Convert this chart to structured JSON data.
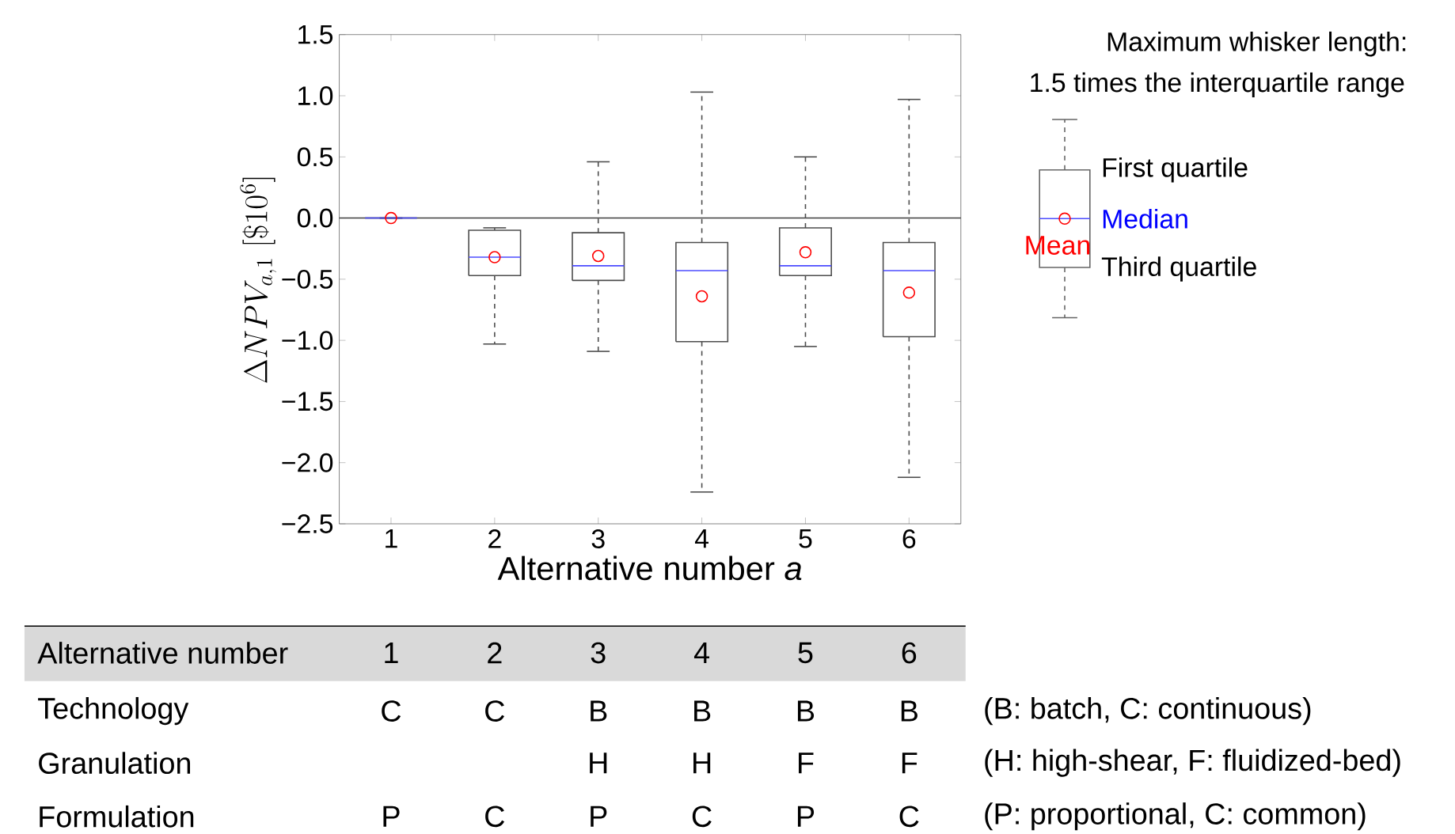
{
  "chart_data": {
    "type": "box",
    "categories": [
      "1",
      "2",
      "3",
      "4",
      "5",
      "6"
    ],
    "xlabel": "Alternative number *a*",
    "ylabel": "\\Delta NPV_{a,1}\\;[\\$10^{6}]",
    "ylim": [
      -2.5,
      1.5
    ],
    "yticks": [
      {
        "value": 1.5,
        "label": "1.5"
      },
      {
        "value": 1.0,
        "label": "1.0"
      },
      {
        "value": 0.5,
        "label": "0.5"
      },
      {
        "value": 0,
        "label": "0.0"
      },
      {
        "value": -0.5,
        "label": "−0.5"
      },
      {
        "value": -1.0,
        "label": "−1.0"
      },
      {
        "value": -1.5,
        "label": "−1.5"
      },
      {
        "value": -2.0,
        "label": "−2.0"
      },
      {
        "value": -2.5,
        "label": "−2.5"
      }
    ],
    "series": [
      {
        "color": "#4d4d4d",
        "boxes": [
          {
            "low": 0,
            "q1": 0,
            "median": 0,
            "q3": 0,
            "high": 0,
            "mean": 0
          },
          {
            "low": -1.03,
            "q1": -0.47,
            "median": -0.32,
            "q3": -0.1,
            "high": -0.08,
            "mean": -0.32
          },
          {
            "low": -1.09,
            "q1": -0.51,
            "median": -0.39,
            "q3": -0.12,
            "high": 0.46,
            "mean": -0.31
          },
          {
            "low": -2.24,
            "q1": -1.01,
            "median": -0.43,
            "q3": -0.2,
            "high": 1.03,
            "mean": -0.64
          },
          {
            "low": -1.05,
            "q1": -0.47,
            "median": -0.39,
            "q3": -0.08,
            "high": 0.5,
            "mean": -0.28
          },
          {
            "low": -2.12,
            "q1": -0.97,
            "median": -0.43,
            "q3": -0.2,
            "high": 0.97,
            "mean": -0.61
          }
        ]
      }
    ],
    "marker": "circle",
    "grid": false,
    "ref_lines": [
      {
        "axis": "y",
        "value": 0,
        "color": "#404040",
        "line_style": "solid"
      }
    ],
    "annotations": [
      "Maximum whisker length:",
      "1.5 times the interquartile range",
      "First quartile",
      "Median",
      "Mean",
      "Third quartile",
      "Alternative number",
      "Technology",
      "C",
      "C",
      "B",
      "B",
      "B",
      "B",
      "(B: batch, C: continuous)",
      "Granulation",
      "H",
      "H",
      "F",
      "F",
      "(H: high-shear, F: fluidized-bed)",
      "Formulation",
      "P",
      "C",
      "P",
      "C",
      "P",
      "C",
      "(P: proportional, C: common)"
    ]
  }
}
